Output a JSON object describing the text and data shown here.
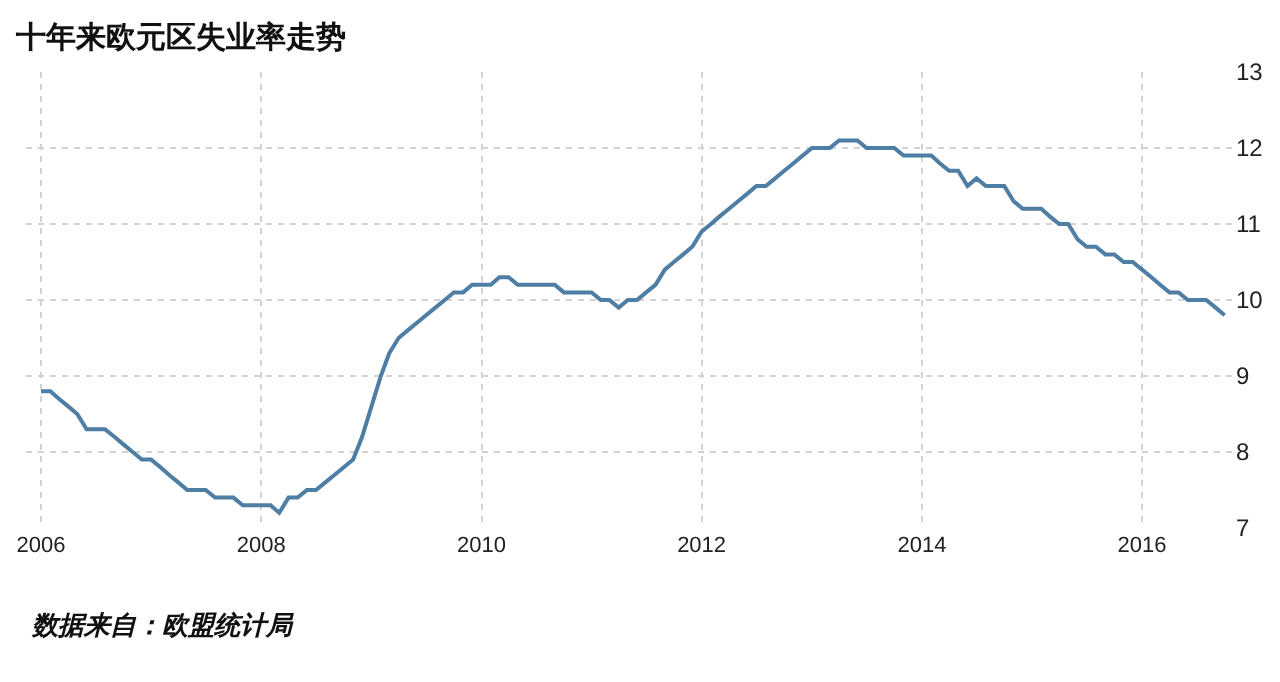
{
  "chart_data": {
    "type": "line",
    "title": "十年来欧元区失业率走势",
    "annotations": [
      "数据来自：欧盟统计局"
    ],
    "x": [
      "2006-01",
      "2006-02",
      "2006-03",
      "2006-04",
      "2006-05",
      "2006-06",
      "2006-07",
      "2006-08",
      "2006-09",
      "2006-10",
      "2006-11",
      "2006-12",
      "2007-01",
      "2007-02",
      "2007-03",
      "2007-04",
      "2007-05",
      "2007-06",
      "2007-07",
      "2007-08",
      "2007-09",
      "2007-10",
      "2007-11",
      "2007-12",
      "2008-01",
      "2008-02",
      "2008-03",
      "2008-04",
      "2008-05",
      "2008-06",
      "2008-07",
      "2008-08",
      "2008-09",
      "2008-10",
      "2008-11",
      "2008-12",
      "2009-01",
      "2009-02",
      "2009-03",
      "2009-04",
      "2009-05",
      "2009-06",
      "2009-07",
      "2009-08",
      "2009-09",
      "2009-10",
      "2009-11",
      "2009-12",
      "2010-01",
      "2010-02",
      "2010-03",
      "2010-04",
      "2010-05",
      "2010-06",
      "2010-07",
      "2010-08",
      "2010-09",
      "2010-10",
      "2010-11",
      "2010-12",
      "2011-01",
      "2011-02",
      "2011-03",
      "2011-04",
      "2011-05",
      "2011-06",
      "2011-07",
      "2011-08",
      "2011-09",
      "2011-10",
      "2011-11",
      "2011-12",
      "2012-01",
      "2012-02",
      "2012-03",
      "2012-04",
      "2012-05",
      "2012-06",
      "2012-07",
      "2012-08",
      "2012-09",
      "2012-10",
      "2012-11",
      "2012-12",
      "2013-01",
      "2013-02",
      "2013-03",
      "2013-04",
      "2013-05",
      "2013-06",
      "2013-07",
      "2013-08",
      "2013-09",
      "2013-10",
      "2013-11",
      "2013-12",
      "2014-01",
      "2014-02",
      "2014-03",
      "2014-04",
      "2014-05",
      "2014-06",
      "2014-07",
      "2014-08",
      "2014-09",
      "2014-10",
      "2014-11",
      "2014-12",
      "2015-01",
      "2015-02",
      "2015-03",
      "2015-04",
      "2015-05",
      "2015-06",
      "2015-07",
      "2015-08",
      "2015-09",
      "2015-10",
      "2015-11",
      "2015-12",
      "2016-01",
      "2016-02",
      "2016-03",
      "2016-04",
      "2016-05",
      "2016-06",
      "2016-07",
      "2016-08",
      "2016-09",
      "2016-10"
    ],
    "series": [
      {
        "color": "#4f7ea4",
        "values": [
          8.8,
          8.8,
          8.7,
          8.6,
          8.5,
          8.3,
          8.3,
          8.3,
          8.2,
          8.1,
          8.0,
          7.9,
          7.9,
          7.8,
          7.7,
          7.6,
          7.5,
          7.5,
          7.5,
          7.4,
          7.4,
          7.4,
          7.3,
          7.3,
          7.3,
          7.3,
          7.2,
          7.4,
          7.4,
          7.5,
          7.5,
          7.6,
          7.7,
          7.8,
          7.9,
          8.2,
          8.6,
          9.0,
          9.3,
          9.5,
          9.6,
          9.7,
          9.8,
          9.9,
          10.0,
          10.1,
          10.1,
          10.2,
          10.2,
          10.2,
          10.3,
          10.3,
          10.2,
          10.2,
          10.2,
          10.2,
          10.2,
          10.1,
          10.1,
          10.1,
          10.1,
          10.0,
          10.0,
          9.9,
          10.0,
          10.0,
          10.1,
          10.2,
          10.4,
          10.5,
          10.6,
          10.7,
          10.9,
          11.0,
          11.1,
          11.2,
          11.3,
          11.4,
          11.5,
          11.5,
          11.6,
          11.7,
          11.8,
          11.9,
          12.0,
          12.0,
          12.0,
          12.1,
          12.1,
          12.1,
          12.0,
          12.0,
          12.0,
          12.0,
          11.9,
          11.9,
          11.9,
          11.9,
          11.8,
          11.7,
          11.7,
          11.5,
          11.6,
          11.5,
          11.5,
          11.5,
          11.3,
          11.2,
          11.2,
          11.2,
          11.1,
          11.0,
          11.0,
          10.8,
          10.7,
          10.7,
          10.6,
          10.6,
          10.5,
          10.5,
          10.4,
          10.3,
          10.2,
          10.1,
          10.1,
          10.0,
          10.0,
          10.0,
          9.9,
          9.8
        ]
      }
    ],
    "xlim": [
      "2005-11-12",
      "2016-11-01"
    ],
    "xticks": [
      "2006",
      "2008",
      "2010",
      "2012",
      "2014",
      "2016"
    ],
    "ylim": [
      7,
      13
    ],
    "yticks": [
      7,
      8,
      9,
      10,
      11,
      12,
      13
    ],
    "grid": true,
    "line_style": "solid"
  }
}
